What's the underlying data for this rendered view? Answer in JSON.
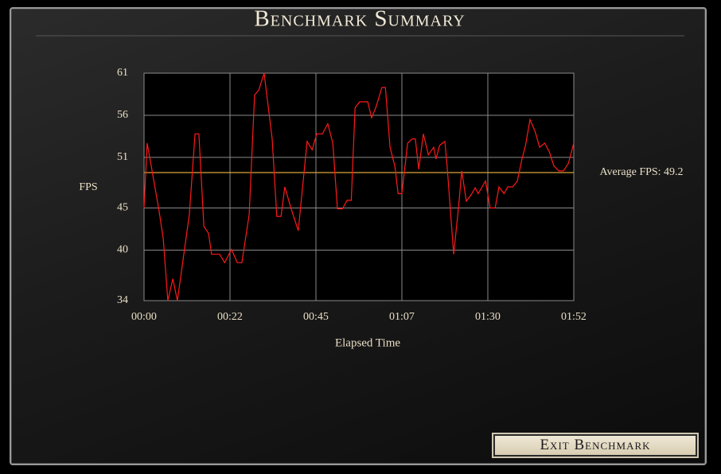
{
  "window": {
    "title": "Benchmark Summary",
    "button": "Exit Benchmark"
  },
  "chart_data": {
    "type": "line",
    "y_label": "FPS",
    "x_label": "Elapsed Time",
    "color": "#ff1a1a",
    "x": [
      0,
      0.8,
      1.9,
      3.9,
      5,
      6.2,
      7.5,
      8.7,
      11.8,
      13.3,
      14.3,
      15.6,
      16.8,
      17.6,
      19.7,
      21,
      22.8,
      24.3,
      25.5,
      27.4,
      28.8,
      29.9,
      31.3,
      33.4,
      34.6,
      35.7,
      36.7,
      38.2,
      40.2,
      42.5,
      43.8,
      45,
      46.5,
      47.9,
      49.2,
      50.4,
      51.7,
      52.9,
      54,
      55,
      56.2,
      58.3,
      59.3,
      60.4,
      62,
      62.9,
      64.1,
      65.4,
      66.2,
      67.2,
      68.7,
      69.9,
      70.7,
      71.6,
      72.8,
      74.1,
      75.5,
      76.1,
      77,
      77.8,
      78.4,
      79,
      80.7,
      82,
      82.8,
      84,
      85.3,
      86.3,
      87.1,
      89,
      90.2,
      91.5,
      92.5,
      93.8,
      94.8,
      96.1,
      97.3,
      98.5,
      99.4,
      100.6,
      101.9,
      103.1,
      104.4,
      105.6,
      106.8,
      108.1,
      109.3,
      110.6,
      112
    ],
    "values": [
      45,
      52.7,
      49.9,
      44.7,
      41.4,
      34,
      36.6,
      34,
      44.2,
      53.8,
      53.8,
      42.8,
      42,
      39.5,
      39.5,
      38.5,
      40.1,
      38.5,
      38.5,
      44.2,
      58.4,
      59,
      61,
      53.2,
      44,
      44,
      47.5,
      45.1,
      42.3,
      52.9,
      51.9,
      53.8,
      53.8,
      55,
      52.7,
      44.9,
      44.9,
      45.9,
      45.9,
      56.9,
      57.6,
      57.6,
      55.7,
      56.9,
      59.3,
      59.3,
      52.2,
      49.9,
      46.7,
      46.7,
      52.7,
      53.2,
      53.2,
      49.6,
      53.8,
      51.3,
      52.2,
      50.8,
      52.4,
      52.7,
      52.9,
      49.9,
      39.5,
      45.3,
      49.4,
      45.8,
      46.6,
      47.4,
      46.7,
      48.2,
      45,
      45,
      47.5,
      46.7,
      47.5,
      47.5,
      48.2,
      50.8,
      52.4,
      55.5,
      54.1,
      52.2,
      52.7,
      51.7,
      50,
      49.4,
      49.4,
      50.3,
      52.7
    ],
    "xlim": [
      0,
      112
    ],
    "xticks": [
      {
        "value": 0,
        "label": "00:00"
      },
      {
        "value": 22.4,
        "label": "00:22"
      },
      {
        "value": 44.8,
        "label": "00:45"
      },
      {
        "value": 67.2,
        "label": "01:07"
      },
      {
        "value": 89.6,
        "label": "01:30"
      },
      {
        "value": 112,
        "label": "01:52"
      }
    ],
    "ylim": [
      34,
      61
    ],
    "yticks": [
      34,
      40,
      45,
      51,
      56,
      61
    ],
    "grid": true,
    "average": {
      "value": 49.2,
      "label": "Average FPS: 49.2",
      "color": "#d9a53a"
    }
  }
}
